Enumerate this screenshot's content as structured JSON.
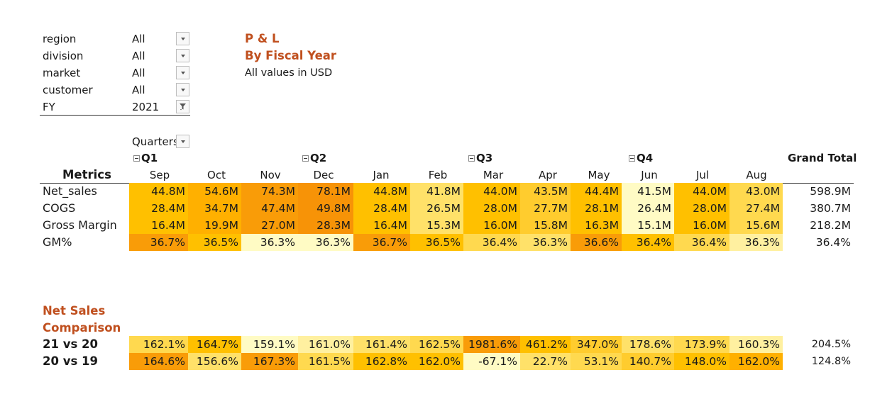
{
  "filters": [
    {
      "label": "region",
      "value": "All",
      "filtered": false
    },
    {
      "label": "division",
      "value": "All",
      "filtered": false
    },
    {
      "label": "market",
      "value": "All",
      "filtered": false
    },
    {
      "label": "customer",
      "value": "All",
      "filtered": false
    },
    {
      "label": "FY",
      "value": "2021",
      "filtered": true
    }
  ],
  "titles": {
    "line1": "P & L",
    "line2": "By Fiscal Year",
    "note": "All values in USD"
  },
  "pivot": {
    "quarters_field": "Quarters",
    "quarters": [
      "Q1",
      "Q2",
      "Q3",
      "Q4"
    ],
    "grand_total_label": "Grand Total",
    "metrics_label": "Metrics",
    "months": [
      "Sep",
      "Oct",
      "Nov",
      "Dec",
      "Jan",
      "Feb",
      "Mar",
      "Apr",
      "May",
      "Jun",
      "Jul",
      "Aug"
    ],
    "rows": [
      {
        "label": "Net_sales",
        "values": [
          "44.8M",
          "54.6M",
          "74.3M",
          "78.1M",
          "44.8M",
          "41.8M",
          "44.0M",
          "43.5M",
          "44.4M",
          "41.5M",
          "44.0M",
          "43.0M"
        ],
        "colors": [
          "#ffc000",
          "#ffb000",
          "#f99c08",
          "#f79307",
          "#ffc000",
          "#ffe169",
          "#ffc000",
          "#ffcc2e",
          "#ffc000",
          "#fffbc4",
          "#ffc000",
          "#ffd94f"
        ],
        "total": "598.9M"
      },
      {
        "label": "COGS",
        "values": [
          "28.4M",
          "34.7M",
          "47.4M",
          "49.8M",
          "28.4M",
          "26.5M",
          "28.0M",
          "27.7M",
          "28.1M",
          "26.4M",
          "28.0M",
          "27.4M"
        ],
        "colors": [
          "#ffc000",
          "#ffb000",
          "#f99c08",
          "#f79307",
          "#ffc000",
          "#ffe169",
          "#ffc000",
          "#ffcc2e",
          "#ffc000",
          "#fffbc4",
          "#ffc000",
          "#ffd94f"
        ],
        "total": "380.7M"
      },
      {
        "label": "Gross Margin",
        "values": [
          "16.4M",
          "19.9M",
          "27.0M",
          "28.3M",
          "16.4M",
          "15.3M",
          "16.0M",
          "15.8M",
          "16.3M",
          "15.1M",
          "16.0M",
          "15.6M"
        ],
        "colors": [
          "#ffc000",
          "#ffb000",
          "#f99c08",
          "#f79307",
          "#ffc000",
          "#ffe169",
          "#ffc000",
          "#ffcc2e",
          "#ffc000",
          "#fffbc4",
          "#ffc000",
          "#ffd94f"
        ],
        "total": "218.2M"
      },
      {
        "label": "GM%",
        "values": [
          "36.7%",
          "36.5%",
          "36.3%",
          "36.3%",
          "36.7%",
          "36.5%",
          "36.4%",
          "36.3%",
          "36.6%",
          "36.4%",
          "36.4%",
          "36.3%"
        ],
        "colors": [
          "#f99c08",
          "#ffc000",
          "#fffbc4",
          "#fffbc4",
          "#f99c08",
          "#ffc000",
          "#ffd94f",
          "#ffe169",
          "#f99c08",
          "#ffc000",
          "#ffd94f",
          "#fff0a0"
        ],
        "total": "36.4%"
      }
    ]
  },
  "comparison": {
    "title_line1": "Net Sales",
    "title_line2": "Comparison",
    "rows": [
      {
        "label": "21 vs 20",
        "values": [
          "162.1%",
          "164.7%",
          "159.1%",
          "161.0%",
          "161.4%",
          "162.5%",
          "1981.6%",
          "461.2%",
          "347.0%",
          "178.6%",
          "173.9%",
          "160.3%"
        ],
        "colors": [
          "#ffd94f",
          "#ffc000",
          "#fffbc4",
          "#fff0a0",
          "#ffe169",
          "#ffd94f",
          "#f99c08",
          "#ffc000",
          "#ffcc2e",
          "#ffe169",
          "#ffd94f",
          "#fff0a0"
        ],
        "total": "204.5%"
      },
      {
        "label": "20 vs 19",
        "values": [
          "164.6%",
          "156.6%",
          "167.3%",
          "161.5%",
          "162.8%",
          "162.0%",
          "-67.1%",
          "22.7%",
          "53.1%",
          "140.7%",
          "148.0%",
          "162.0%"
        ],
        "colors": [
          "#f99c08",
          "#ffe169",
          "#f99c08",
          "#ffd94f",
          "#ffc000",
          "#ffc000",
          "#fffbc4",
          "#ffe169",
          "#ffd94f",
          "#ffcc2e",
          "#ffc000",
          "#ffb000"
        ],
        "total": "124.8%"
      }
    ]
  }
}
